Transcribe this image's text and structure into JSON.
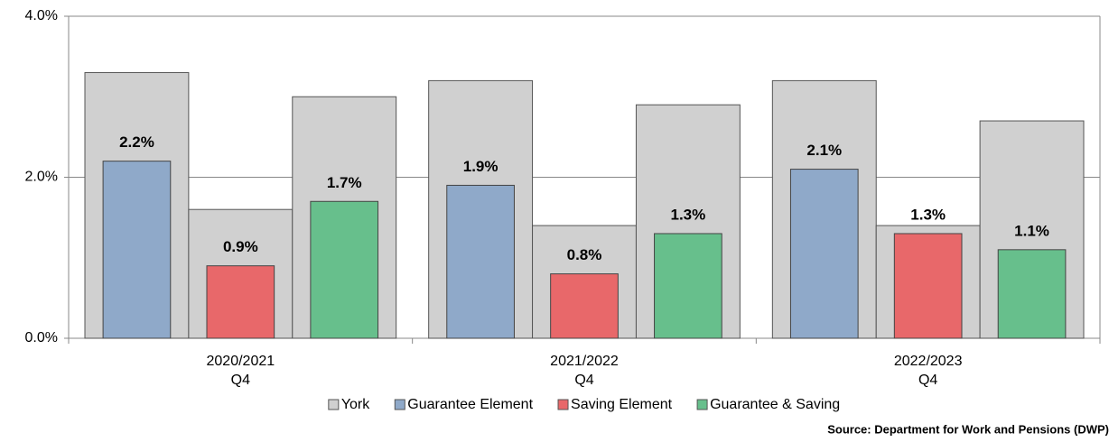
{
  "chart_data": {
    "type": "overlay-bar",
    "categories": [
      [
        "2020/2021",
        "Q4"
      ],
      [
        "2021/2022",
        "Q4"
      ],
      [
        "2022/2023",
        "Q4"
      ]
    ],
    "background": {
      "name": "York",
      "color": "#d0d0d0"
    },
    "series": [
      {
        "name": "Guarantee Element",
        "color": "#8fa9c9",
        "values": [
          2.2,
          1.9,
          2.1
        ],
        "value_labels": [
          "2.2%",
          "1.9%",
          "2.1%"
        ],
        "york": [
          3.3,
          3.2,
          3.2
        ]
      },
      {
        "name": "Saving Element",
        "color": "#e8686a",
        "values": [
          0.9,
          0.8,
          1.3
        ],
        "value_labels": [
          "0.9%",
          "0.8%",
          "1.3%"
        ],
        "york": [
          1.6,
          1.4,
          1.4
        ]
      },
      {
        "name": "Guarantee & Saving",
        "color": "#67bf8c",
        "values": [
          1.7,
          1.3,
          1.1
        ],
        "value_labels": [
          "1.7%",
          "1.3%",
          "1.1%"
        ],
        "york": [
          3.0,
          2.9,
          2.7
        ]
      }
    ],
    "ylim": [
      0,
      4
    ],
    "yticks": [
      {
        "value": 0,
        "label": "0.0%"
      },
      {
        "value": 2,
        "label": "2.0%"
      },
      {
        "value": 4,
        "label": "4.0%"
      }
    ],
    "grid": true,
    "source": "Source: Department for Work and Pensions (DWP)"
  }
}
